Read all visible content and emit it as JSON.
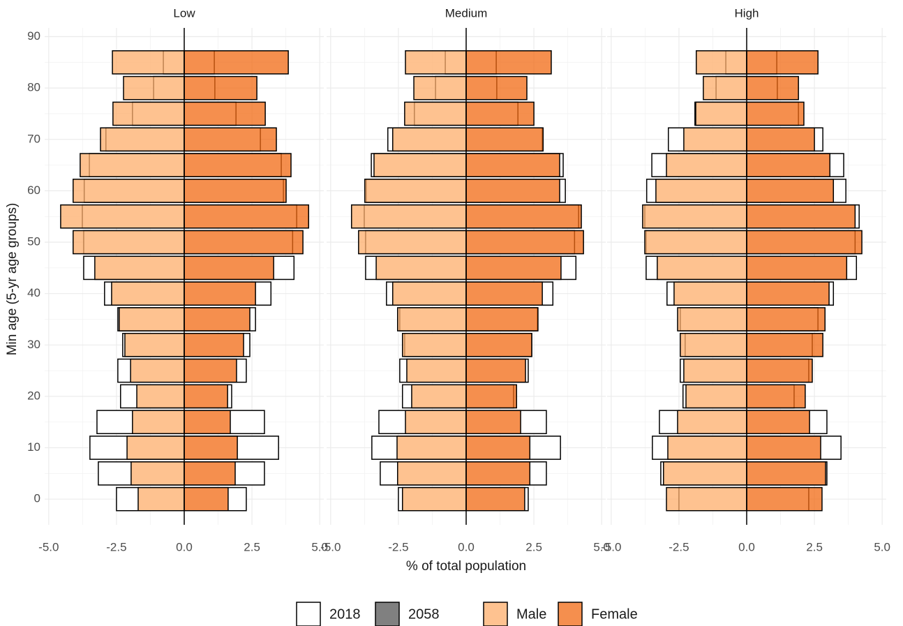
{
  "chart_data": {
    "type": "pyramid",
    "xlabel": "% of total population",
    "ylabel": "Min age (5-yr age groups)",
    "xlim": [
      -5.15,
      5.15
    ],
    "xticks": [
      {
        "value": -5,
        "label": "-5.0"
      },
      {
        "value": -2.5,
        "label": "-2.5"
      },
      {
        "value": 0,
        "label": "0.0"
      },
      {
        "value": 2.5,
        "label": "2.5"
      },
      {
        "value": 5,
        "label": "5.0"
      }
    ],
    "ylim": [
      -5,
      91.7
    ],
    "yticks": [
      0,
      10,
      20,
      30,
      40,
      50,
      60,
      70,
      80,
      90
    ],
    "grid": true,
    "legend": {
      "years": [
        {
          "name": "2018",
          "fill": "#ffffff"
        },
        {
          "name": "2058",
          "fill": "#808080"
        }
      ],
      "sexes": [
        {
          "name": "Male",
          "color": "#fdae6b"
        },
        {
          "name": "Female",
          "color": "#f16913"
        }
      ]
    },
    "ages": [
      0,
      5,
      10,
      15,
      20,
      25,
      30,
      35,
      40,
      45,
      50,
      55,
      60,
      65,
      70,
      75,
      80,
      85
    ],
    "facets": [
      {
        "title": "Low",
        "male_2018": [
          -2.5,
          -3.17,
          -3.48,
          -3.22,
          -2.35,
          -2.45,
          -2.27,
          -2.45,
          -2.94,
          -3.71,
          -3.71,
          -3.76,
          -3.69,
          -3.5,
          -2.89,
          -1.91,
          -1.13,
          -0.77
        ],
        "male_2058": [
          -1.7,
          -1.96,
          -2.11,
          -1.91,
          -1.75,
          -1.98,
          -2.19,
          -2.4,
          -2.68,
          -3.3,
          -4.1,
          -4.56,
          -4.1,
          -3.84,
          -3.09,
          -2.63,
          -2.24,
          -2.65
        ],
        "female_2018": [
          2.29,
          2.96,
          3.48,
          2.96,
          1.75,
          2.29,
          2.42,
          2.63,
          3.2,
          4.05,
          4.0,
          4.15,
          3.66,
          3.58,
          2.81,
          1.91,
          1.13,
          1.11
        ],
        "female_2058": [
          1.62,
          1.88,
          1.96,
          1.7,
          1.6,
          1.93,
          2.19,
          2.42,
          2.63,
          3.3,
          4.38,
          4.59,
          3.76,
          3.94,
          3.4,
          2.99,
          2.68,
          3.84
        ]
      },
      {
        "title": "Medium",
        "male_2018": [
          -2.5,
          -3.17,
          -3.48,
          -3.22,
          -2.35,
          -2.45,
          -2.27,
          -2.45,
          -2.94,
          -3.71,
          -3.71,
          -3.76,
          -3.69,
          -3.5,
          -2.89,
          -1.91,
          -1.13,
          -0.77
        ],
        "male_2058": [
          -2.35,
          -2.53,
          -2.55,
          -2.24,
          -2.01,
          -2.19,
          -2.35,
          -2.53,
          -2.71,
          -3.32,
          -3.97,
          -4.23,
          -3.74,
          -3.4,
          -2.71,
          -2.27,
          -1.93,
          -2.24
        ],
        "female_2018": [
          2.29,
          2.96,
          3.48,
          2.96,
          1.75,
          2.29,
          2.42,
          2.63,
          3.2,
          4.05,
          4.0,
          4.15,
          3.66,
          3.58,
          2.81,
          1.91,
          1.13,
          1.11
        ],
        "female_2058": [
          2.16,
          2.35,
          2.35,
          2.01,
          1.86,
          2.19,
          2.42,
          2.65,
          2.81,
          3.5,
          4.33,
          4.25,
          3.45,
          3.45,
          2.84,
          2.5,
          2.24,
          3.14
        ]
      },
      {
        "title": "High",
        "male_2018": [
          -2.5,
          -3.17,
          -3.48,
          -3.22,
          -2.35,
          -2.45,
          -2.27,
          -2.45,
          -2.94,
          -3.71,
          -3.71,
          -3.76,
          -3.69,
          -3.5,
          -2.89,
          -1.91,
          -1.13,
          -0.77
        ],
        "male_2058": [
          -2.96,
          -3.07,
          -2.91,
          -2.55,
          -2.24,
          -2.32,
          -2.45,
          -2.55,
          -2.68,
          -3.3,
          -3.76,
          -3.84,
          -3.35,
          -2.96,
          -2.32,
          -1.88,
          -1.6,
          -1.86
        ],
        "female_2018": [
          2.29,
          2.96,
          3.48,
          2.96,
          1.75,
          2.29,
          2.42,
          2.63,
          3.2,
          4.05,
          4.0,
          4.15,
          3.66,
          3.58,
          2.81,
          1.91,
          1.13,
          1.11
        ],
        "female_2058": [
          2.78,
          2.91,
          2.73,
          2.32,
          2.16,
          2.42,
          2.81,
          2.89,
          3.04,
          3.69,
          4.25,
          4.0,
          3.2,
          3.07,
          2.5,
          2.11,
          1.91,
          2.63
        ]
      }
    ]
  }
}
